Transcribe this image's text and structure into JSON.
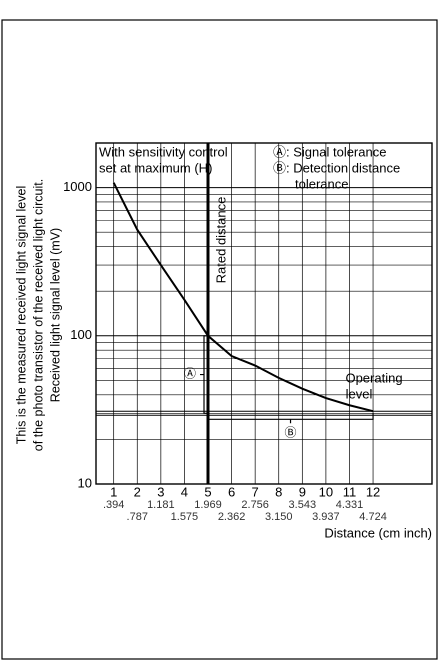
{
  "chart_data": {
    "type": "line",
    "ylabel": [
      "This is the measured received light signal level",
      "of the photo transistor of the received light circuit.",
      "Received light signal level (mV)"
    ],
    "xlabel": "Distance (cm inch)",
    "x": [
      1,
      2,
      3,
      4,
      5,
      6,
      7,
      8,
      9,
      10,
      11,
      12
    ],
    "series": [
      {
        "color": "#000000",
        "values": [
          1080,
          520,
          300,
          175,
          100,
          73,
          63,
          52,
          44,
          38,
          34,
          31
        ]
      }
    ],
    "xlim": [
      0.25,
      14.5
    ],
    "xticks": [
      1,
      2,
      3,
      4,
      5,
      6,
      7,
      8,
      9,
      10,
      11,
      12
    ],
    "x2_labels": [
      ".394",
      ".787",
      "1.181",
      "1.575",
      "1.969",
      "2.362",
      "2.756",
      "3.150",
      "3.543",
      "3.937",
      "4.331",
      "4.724"
    ],
    "ylim": [
      10,
      2000
    ],
    "yticks": [
      10,
      100,
      1000
    ],
    "log_y": true,
    "grid": true,
    "rated_distance": 5,
    "operating_level": 30,
    "annotations": {
      "note1": "With sensitivity control",
      "note2": "set at maximum (H)",
      "a_legend": "Ⓐ: Signal tolerance",
      "b_legend": "Ⓑ: Detection distance",
      "b_legend2": "tolerance",
      "rated": "Rated distance",
      "operating1": "Operating",
      "operating2": "level",
      "a_mark": "Ⓐ",
      "b_mark": "Ⓑ"
    }
  }
}
